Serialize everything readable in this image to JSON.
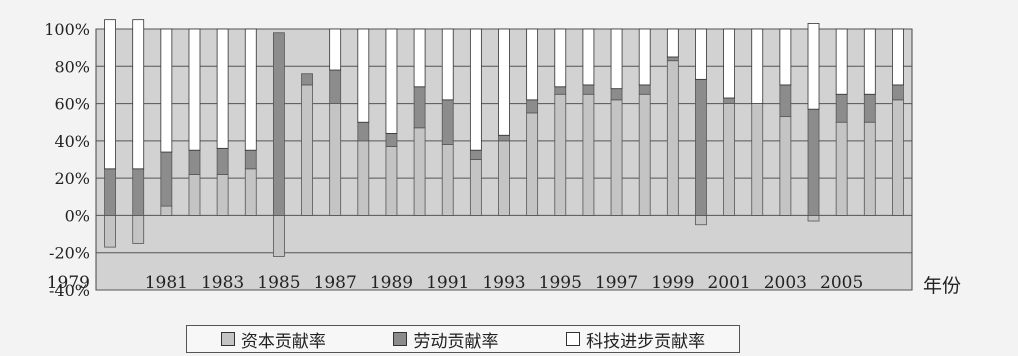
{
  "chart_data": {
    "type": "bar",
    "stacked": true,
    "x_unit_label": "年份",
    "x": [
      1979,
      1980,
      1981,
      1982,
      1983,
      1984,
      1985,
      1986,
      1987,
      1988,
      1989,
      1990,
      1991,
      1992,
      1993,
      1994,
      1995,
      1996,
      1997,
      1998,
      1999,
      2000,
      2001,
      2002,
      2003,
      2004,
      2005,
      2006,
      2007
    ],
    "x_tick_labels": [
      "1979",
      "1981",
      "1983",
      "1985",
      "1987",
      "1989",
      "1991",
      "1993",
      "1995",
      "1997",
      "1999",
      "2001",
      "2003",
      "2005"
    ],
    "y_tick_labels": [
      "100%",
      "80%",
      "60%",
      "40%",
      "20%",
      "0%",
      "-20%",
      "-40%"
    ],
    "ylim": [
      -40,
      100
    ],
    "grid": true,
    "legend_position": "bottom",
    "series": [
      {
        "name": "资本贡献率",
        "color": "#c4c4c4",
        "values": [
          -17,
          -15,
          5,
          22,
          22,
          25,
          -22,
          70,
          60,
          40,
          37,
          47,
          38,
          30,
          40,
          55,
          65,
          65,
          62,
          65,
          83,
          -5,
          60,
          60,
          53,
          -3,
          50,
          50,
          62
        ]
      },
      {
        "name": "劳动贡献率",
        "color": "#8c8c8c",
        "values": [
          25,
          25,
          29,
          13,
          14,
          10,
          98,
          6,
          18,
          10,
          7,
          22,
          24,
          5,
          3,
          7,
          4,
          5,
          6,
          5,
          2,
          73,
          3,
          0,
          17,
          57,
          15,
          15,
          8
        ]
      },
      {
        "name": "科技进步贡献率",
        "color": "#ffffff",
        "values": [
          80,
          80,
          66,
          65,
          64,
          65,
          0,
          0,
          22,
          50,
          56,
          31,
          38,
          65,
          57,
          38,
          31,
          30,
          32,
          30,
          15,
          27,
          37,
          40,
          30,
          46,
          35,
          35,
          30
        ]
      }
    ]
  },
  "legend": {
    "items": [
      {
        "label": "资本贡献率",
        "color": "#c4c4c4"
      },
      {
        "label": "劳动贡献率",
        "color": "#8c8c8c"
      },
      {
        "label": "科技进步贡献率",
        "color": "#ffffff"
      }
    ]
  }
}
